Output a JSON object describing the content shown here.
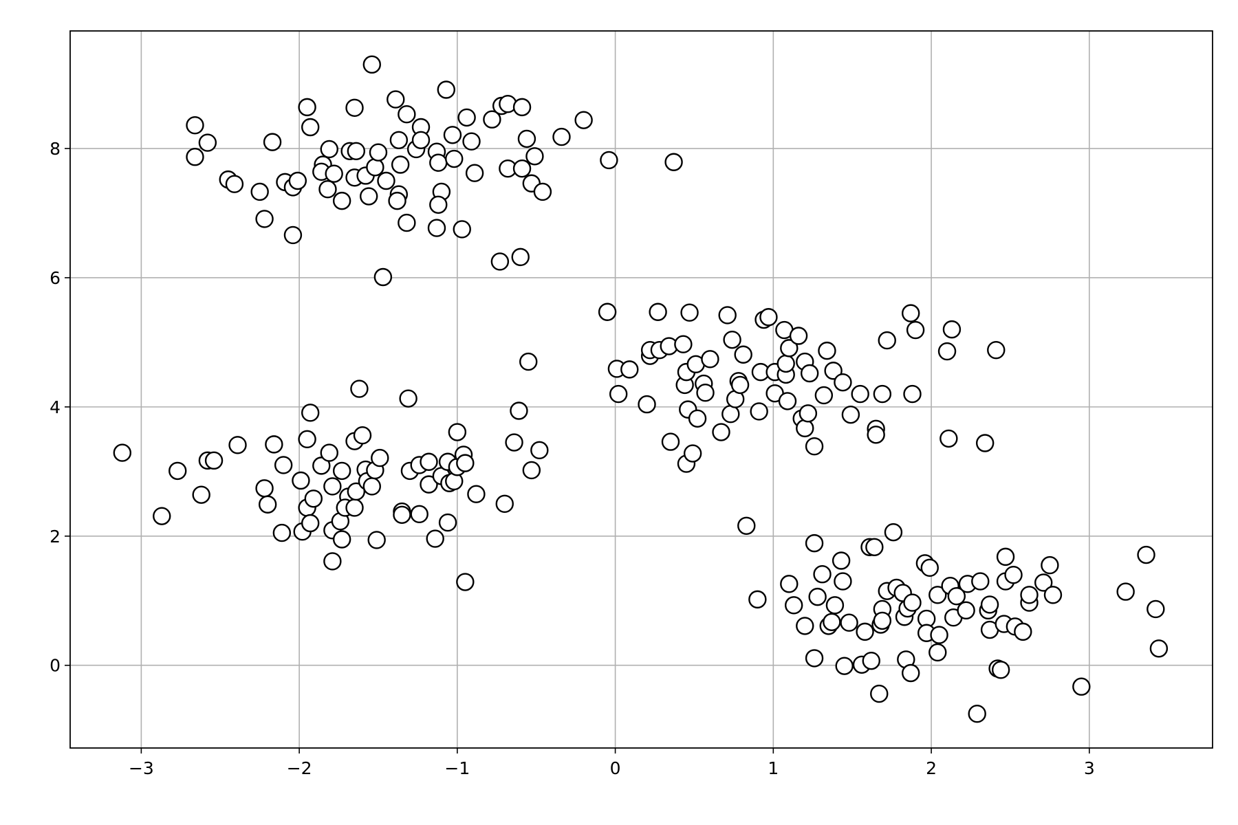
{
  "chart_data": {
    "type": "scatter",
    "x": [
      -2.66,
      -2.58,
      -2.66,
      -2.45,
      -2.41,
      -2.25,
      -2.22,
      -2.17,
      -2.09,
      -2.04,
      -2.01,
      -2.04,
      -1.95,
      -1.93,
      -1.81,
      -1.85,
      -1.86,
      -1.82,
      -1.78,
      -1.73,
      -1.68,
      -1.65,
      -1.64,
      -1.65,
      -1.58,
      -1.56,
      -1.54,
      -1.52,
      -1.5,
      -1.47,
      -1.45,
      -1.39,
      -1.37,
      -1.36,
      -1.37,
      -1.38,
      -1.32,
      -1.32,
      -1.26,
      -1.23,
      -1.23,
      -1.13,
      -1.12,
      -1.1,
      -1.12,
      -1.13,
      -1.07,
      -1.03,
      -1.02,
      -0.97,
      -0.94,
      -0.91,
      -0.89,
      -0.78,
      -0.72,
      -0.68,
      -0.59,
      -0.56,
      -0.68,
      -0.59,
      -0.51,
      -0.53,
      -0.46,
      -0.73,
      -0.6,
      -0.34,
      -0.2,
      -0.04,
      0.37,
      -3.12,
      -2.87,
      -2.77,
      -2.62,
      -2.58,
      -2.54,
      -2.39,
      -2.22,
      -2.2,
      -2.16,
      -2.1,
      -2.11,
      -1.99,
      -1.98,
      -1.95,
      -1.93,
      -1.95,
      -1.91,
      -1.93,
      -1.86,
      -1.81,
      -1.79,
      -1.79,
      -1.79,
      -1.73,
      -1.74,
      -1.73,
      -1.69,
      -1.71,
      -1.65,
      -1.65,
      -1.64,
      -1.62,
      -1.6,
      -1.58,
      -1.57,
      -1.54,
      -1.52,
      -1.49,
      -1.51,
      -1.35,
      -1.35,
      -1.31,
      -1.3,
      -1.24,
      -1.24,
      -1.18,
      -1.18,
      -1.14,
      -1.1,
      -1.06,
      -1.06,
      -1.05,
      -1.02,
      -1.0,
      -1.0,
      -0.96,
      -0.95,
      -0.95,
      -0.88,
      -0.7,
      -0.64,
      -0.61,
      -0.55,
      -0.53,
      -0.48,
      -0.05,
      0.01,
      0.02,
      0.09,
      0.2,
      0.22,
      0.22,
      0.27,
      0.28,
      0.34,
      0.35,
      0.43,
      0.44,
      0.45,
      0.45,
      0.46,
      0.47,
      0.49,
      0.51,
      0.52,
      0.56,
      0.57,
      0.6,
      0.67,
      0.71,
      0.73,
      0.74,
      0.76,
      0.78,
      0.79,
      0.81,
      0.83,
      0.9,
      0.91,
      0.92,
      0.94,
      0.97,
      1.01,
      1.01,
      1.07,
      1.08,
      1.08,
      1.09,
      1.1,
      1.16,
      1.18,
      1.2,
      1.2,
      1.22,
      1.23,
      1.26,
      1.32,
      1.34,
      1.38,
      1.44,
      1.49,
      1.55,
      1.65,
      1.65,
      1.69,
      1.72,
      1.87,
      1.9,
      1.88,
      2.1,
      2.11,
      2.13,
      2.34,
      2.41,
      1.1,
      1.13,
      1.2,
      1.26,
      1.26,
      1.28,
      1.31,
      1.35,
      1.37,
      1.39,
      1.43,
      1.44,
      1.45,
      1.48,
      1.56,
      1.58,
      1.61,
      1.64,
      1.62,
      1.67,
      1.68,
      1.69,
      1.69,
      1.72,
      1.76,
      1.78,
      1.82,
      1.83,
      1.84,
      1.85,
      1.87,
      1.88,
      1.96,
      1.97,
      1.99,
      1.97,
      2.04,
      2.05,
      2.04,
      2.12,
      2.14,
      2.16,
      2.22,
      2.23,
      2.29,
      2.31,
      2.36,
      2.37,
      2.37,
      2.42,
      2.44,
      2.46,
      2.47,
      2.47,
      2.52,
      2.53,
      2.58,
      2.62,
      2.62,
      2.71,
      2.75,
      2.77,
      2.95,
      3.23,
      3.36,
      3.42,
      3.44
    ],
    "values": [
      8.36,
      8.09,
      7.87,
      7.52,
      7.45,
      7.33,
      6.91,
      8.1,
      7.48,
      7.4,
      7.5,
      6.66,
      8.64,
      8.33,
      7.99,
      7.75,
      7.64,
      7.37,
      7.61,
      7.19,
      7.96,
      8.63,
      7.96,
      7.55,
      7.58,
      7.26,
      9.3,
      7.71,
      7.94,
      6.01,
      7.5,
      8.76,
      8.13,
      7.75,
      7.29,
      7.19,
      8.53,
      6.85,
      7.99,
      8.33,
      8.13,
      7.95,
      7.78,
      7.33,
      7.13,
      6.77,
      8.91,
      8.21,
      7.84,
      6.75,
      8.48,
      8.11,
      7.62,
      8.45,
      8.66,
      8.69,
      8.64,
      8.15,
      7.69,
      7.69,
      7.88,
      7.46,
      7.33,
      6.25,
      6.32,
      8.18,
      8.44,
      7.82,
      7.79,
      3.29,
      2.31,
      3.01,
      2.64,
      3.17,
      3.17,
      3.41,
      2.74,
      2.49,
      3.42,
      3.1,
      2.05,
      2.86,
      2.07,
      3.5,
      3.91,
      2.44,
      2.58,
      2.2,
      3.09,
      3.29,
      2.77,
      2.09,
      1.61,
      3.01,
      2.23,
      1.95,
      2.61,
      2.44,
      2.44,
      3.47,
      2.69,
      4.28,
      3.56,
      3.03,
      2.85,
      2.77,
      3.02,
      3.21,
      1.94,
      2.38,
      2.33,
      4.13,
      3.01,
      2.34,
      3.1,
      3.15,
      2.8,
      1.96,
      2.93,
      3.15,
      2.21,
      2.82,
      2.85,
      3.61,
      3.07,
      3.26,
      3.13,
      1.29,
      2.65,
      2.5,
      3.45,
      3.94,
      4.7,
      3.02,
      3.33,
      5.47,
      4.59,
      4.2,
      4.58,
      4.04,
      4.79,
      4.88,
      5.47,
      4.88,
      4.94,
      3.46,
      4.97,
      4.34,
      4.54,
      3.12,
      3.96,
      5.46,
      3.28,
      4.66,
      3.82,
      4.36,
      4.22,
      4.74,
      3.61,
      5.42,
      3.89,
      5.04,
      4.12,
      4.4,
      4.34,
      4.81,
      2.16,
      1.02,
      3.93,
      4.54,
      5.35,
      5.39,
      4.21,
      4.54,
      5.19,
      4.5,
      4.67,
      4.09,
      4.91,
      5.1,
      3.82,
      3.67,
      4.7,
      3.9,
      4.52,
      3.39,
      4.18,
      4.87,
      4.56,
      4.38,
      3.88,
      4.2,
      3.66,
      3.57,
      4.2,
      5.03,
      5.45,
      5.19,
      4.2,
      4.86,
      3.51,
      5.2,
      3.44,
      4.88,
      1.26,
      0.93,
      0.61,
      0.11,
      1.89,
      1.06,
      1.41,
      0.61,
      0.67,
      0.93,
      1.62,
      1.3,
      -0.01,
      0.66,
      0.01,
      0.52,
      1.83,
      1.83,
      0.07,
      -0.44,
      0.63,
      0.87,
      0.69,
      1.15,
      2.06,
      1.2,
      1.12,
      0.75,
      0.09,
      0.88,
      -0.12,
      0.97,
      1.58,
      0.72,
      1.51,
      0.5,
      1.09,
      0.47,
      0.2,
      1.23,
      0.74,
      1.07,
      0.85,
      1.26,
      -0.75,
      1.3,
      0.85,
      0.94,
      0.55,
      -0.05,
      -0.07,
      0.64,
      1.3,
      1.68,
      1.4,
      0.6,
      0.52,
      0.97,
      1.09,
      1.28,
      1.55,
      1.09,
      -0.33,
      1.14,
      1.71,
      0.87,
      0.26
    ],
    "color": "#ffffff",
    "edgecolor": "#000000",
    "xlim": [
      -3.45,
      3.78
    ],
    "xticks": [
      {
        "value": -3,
        "label": "−3"
      },
      {
        "value": -2,
        "label": "−2"
      },
      {
        "value": -1,
        "label": "−1"
      },
      0,
      1,
      2,
      3
    ],
    "ylim": [
      -1.28,
      9.82
    ],
    "yticks": [
      0,
      2,
      4,
      6,
      8
    ],
    "grid": true
  }
}
